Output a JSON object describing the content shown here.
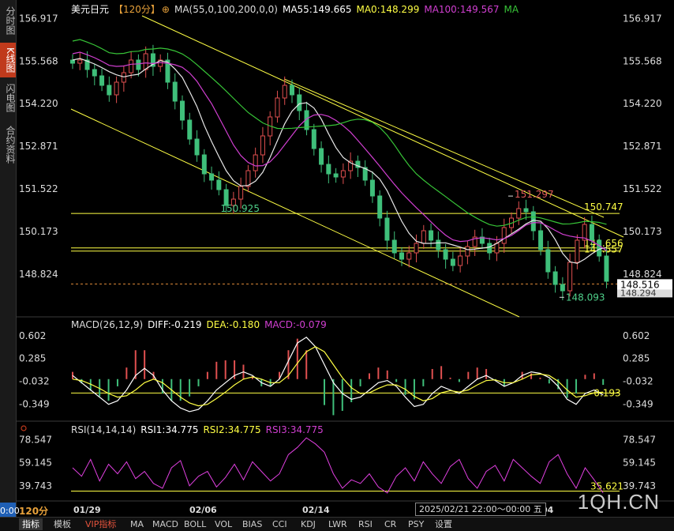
{
  "sidebar": {
    "tabs": [
      {
        "label": "分时图",
        "active": false
      },
      {
        "label": "K线图",
        "active": true
      },
      {
        "label": "闪电图",
        "active": false
      },
      {
        "label": "合约资料",
        "active": false
      }
    ],
    "zero_badge": "0:00"
  },
  "main_header": {
    "symbol": "美元日元",
    "period": "【120分】",
    "gear_icon": "⊕",
    "ma_params": "MA(55,0,100,200,0,0)",
    "ma55": "MA55:149.665",
    "ma0": "MA0:148.299",
    "ma100": "MA100:149.567",
    "ma_extra": "MA"
  },
  "macd_header": {
    "name": "MACD(26,12,9)",
    "diff": "DIFF:-0.219",
    "dea": "DEA:-0.180",
    "macd": "MACD:-0.079"
  },
  "rsi_header": {
    "name": "RSI(14,14,14)",
    "rsi1": "RSI1:34.775",
    "rsi2": "RSI2:34.775",
    "rsi3": "RSI3:34.775"
  },
  "colors": {
    "up": "#e05050",
    "down": "#3fbf7a",
    "yellow": "#ffff44",
    "ma55_white": "#e8e8e8",
    "ma100_magenta": "#d13fd1",
    "ma200_green": "#37c437",
    "rsi_magenta": "#e040e0",
    "accent_orange": "#e8a13a"
  },
  "chart_data": [
    {
      "type": "candlestick",
      "title": "美元日元 120分",
      "y_ticks": [
        "156.917",
        "155.568",
        "154.220",
        "152.871",
        "151.522",
        "150.173",
        "148.824"
      ],
      "ylim": [
        147.6,
        157.3
      ],
      "x_labels": [
        "01/29",
        "02/06",
        "02/14",
        "04"
      ],
      "close_path": [
        155.5,
        155.6,
        155.3,
        155.1,
        154.8,
        154.5,
        154.9,
        155.2,
        155.6,
        155.3,
        155.8,
        155.4,
        155.6,
        154.9,
        154.3,
        153.7,
        153.1,
        152.6,
        152.0,
        151.8,
        151.5,
        151.0,
        151.2,
        151.6,
        152.1,
        152.6,
        153.2,
        153.8,
        154.4,
        154.8,
        154.5,
        154.0,
        153.4,
        152.8,
        152.3,
        152.0,
        151.9,
        152.1,
        152.4,
        152.2,
        151.8,
        151.3,
        150.6,
        149.9,
        149.5,
        149.3,
        149.5,
        149.8,
        150.2,
        149.9,
        149.6,
        149.3,
        149.1,
        149.4,
        149.7,
        150.0,
        149.8,
        149.5,
        149.8,
        150.3,
        150.6,
        150.9,
        150.8,
        150.2,
        149.6,
        148.9,
        148.5,
        148.3,
        149.2,
        149.9,
        150.4,
        149.9,
        149.4,
        148.6
      ],
      "annotations": [
        {
          "text": "151.297",
          "color": "#e05a5a"
        },
        {
          "text": "150.925",
          "color": "#4fd08a"
        },
        {
          "text": "148.093",
          "color": "#4fd08a"
        },
        {
          "text": "150.747",
          "color": "#ffff44"
        },
        {
          "text": "149.656",
          "color": "#ffff44"
        },
        {
          "text": "149.557",
          "color": "#ffff44"
        }
      ],
      "horizontal_lines": [
        150.747,
        149.656,
        149.557
      ],
      "last_price": "148.516",
      "hidden_price": "148.294"
    },
    {
      "type": "macd",
      "y_ticks": [
        "0.602",
        "0.285",
        "-0.032",
        "-0.349"
      ],
      "ylim": [
        -0.55,
        0.72
      ],
      "level_label": "-0.193",
      "diff": [
        0.05,
        -0.05,
        -0.15,
        -0.25,
        -0.35,
        -0.3,
        -0.15,
        0.05,
        0.15,
        0.05,
        -0.15,
        -0.3,
        -0.4,
        -0.45,
        -0.42,
        -0.3,
        -0.15,
        -0.05,
        0.05,
        0.1,
        0.05,
        -0.05,
        -0.1,
        0.0,
        0.25,
        0.5,
        0.58,
        0.45,
        0.2,
        -0.05,
        -0.2,
        -0.28,
        -0.25,
        -0.15,
        -0.05,
        -0.02,
        -0.1,
        -0.25,
        -0.38,
        -0.35,
        -0.2,
        -0.1,
        -0.15,
        -0.2,
        -0.1,
        0.0,
        0.05,
        -0.02,
        -0.1,
        -0.05,
        0.05,
        0.1,
        0.08,
        0.02,
        -0.1,
        -0.28,
        -0.35,
        -0.2,
        -0.15,
        -0.22
      ],
      "dea": [
        0.0,
        -0.02,
        -0.07,
        -0.13,
        -0.2,
        -0.25,
        -0.23,
        -0.15,
        -0.05,
        0.0,
        -0.05,
        -0.15,
        -0.25,
        -0.33,
        -0.37,
        -0.35,
        -0.27,
        -0.18,
        -0.08,
        0.0,
        0.03,
        0.0,
        -0.05,
        -0.05,
        0.05,
        0.22,
        0.38,
        0.45,
        0.38,
        0.2,
        0.02,
        -0.12,
        -0.2,
        -0.19,
        -0.13,
        -0.08,
        -0.08,
        -0.14,
        -0.24,
        -0.3,
        -0.27,
        -0.19,
        -0.16,
        -0.18,
        -0.15,
        -0.08,
        -0.02,
        -0.01,
        -0.05,
        -0.05,
        0.0,
        0.06,
        0.07,
        0.05,
        -0.03,
        -0.15,
        -0.25,
        -0.23,
        -0.19,
        -0.18
      ]
    },
    {
      "type": "rsi",
      "y_ticks": [
        "78.547",
        "59.145",
        "39.743"
      ],
      "ylim": [
        30,
        84
      ],
      "level_label": "35.621",
      "rsi": [
        55,
        48,
        62,
        44,
        58,
        50,
        60,
        46,
        52,
        42,
        38,
        55,
        61,
        40,
        48,
        52,
        39,
        47,
        58,
        45,
        60,
        52,
        44,
        50,
        66,
        72,
        80,
        75,
        68,
        50,
        38,
        45,
        42,
        50,
        39,
        34,
        48,
        55,
        44,
        60,
        50,
        42,
        56,
        62,
        46,
        38,
        52,
        57,
        44,
        62,
        55,
        48,
        42,
        60,
        66,
        50,
        38,
        55,
        45,
        34
      ]
    }
  ],
  "bottom_bar": {
    "period_label": "120分",
    "x_labels": [
      "01/29",
      "02/06",
      "02/14",
      "04"
    ],
    "crosshair_time": "2025/02/21 22:00～00:00 五",
    "tabs": [
      "指标",
      "模板",
      "VIP指标",
      "MA",
      "MACD",
      "BOLL",
      "VOL",
      "BIAS",
      "CCI",
      "KDJ",
      "LWR",
      "RSI",
      "CR",
      "PSY",
      "设置"
    ]
  },
  "brand": "1QH.CN"
}
